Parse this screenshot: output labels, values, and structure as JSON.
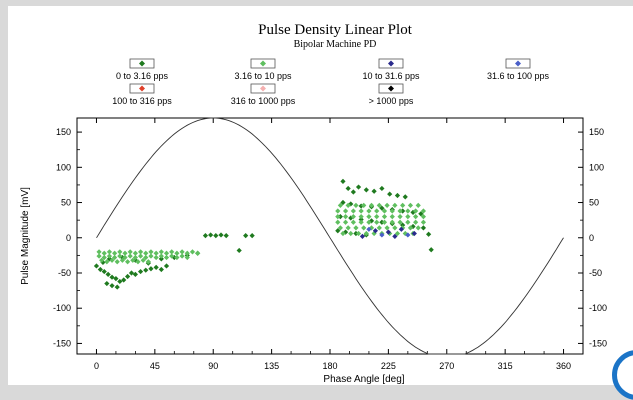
{
  "chart_data": {
    "type": "scatter",
    "title": "Pulse Density Linear Plot",
    "subtitle": "Bipolar Machine PD",
    "xlabel": "Phase Angle [deg]",
    "ylabel": "Pulse Magnitude [mV]",
    "xlim": [
      -15,
      375
    ],
    "ylim": [
      -165,
      170
    ],
    "xticks": [
      0,
      45,
      90,
      135,
      180,
      225,
      270,
      315,
      360
    ],
    "yticks": [
      150,
      100,
      50,
      0,
      -50,
      -100,
      -150
    ],
    "grid": false,
    "legend": [
      {
        "label": "0 to 3.16 pps",
        "color": "#1f7a1f"
      },
      {
        "label": "3.16 to 10 pps",
        "color": "#5fbf5f"
      },
      {
        "label": "10 to 31.6 pps",
        "color": "#2a2a8c"
      },
      {
        "label": "31.6 to 100 pps",
        "color": "#4a5fc8"
      },
      {
        "label": "100 to 316 pps",
        "color": "#e0402a"
      },
      {
        "label": "316 to 1000 pps",
        "color": "#f5b0b0"
      },
      {
        "label": "> 1000 pps",
        "color": "#000000"
      }
    ],
    "reference_curve": {
      "name": "",
      "amplitude": 170,
      "period_deg": 360
    },
    "series": [
      {
        "range": "0 to 3.16 pps",
        "color": "#1f7a1f",
        "points": [
          [
            0,
            -40
          ],
          [
            3,
            -45
          ],
          [
            6,
            -48
          ],
          [
            9,
            -52
          ],
          [
            12,
            -56
          ],
          [
            15,
            -58
          ],
          [
            18,
            -62
          ],
          [
            21,
            -60
          ],
          [
            24,
            -55
          ],
          [
            27,
            -50
          ],
          [
            8,
            -65
          ],
          [
            12,
            -68
          ],
          [
            16,
            -70
          ],
          [
            30,
            -52
          ],
          [
            34,
            -48
          ],
          [
            38,
            -46
          ],
          [
            42,
            -44
          ],
          [
            46,
            -42
          ],
          [
            50,
            -45
          ],
          [
            54,
            -40
          ],
          [
            5,
            -35
          ],
          [
            10,
            -30
          ],
          [
            20,
            -28
          ],
          [
            30,
            -32
          ],
          [
            40,
            -36
          ],
          [
            50,
            -30
          ],
          [
            60,
            -28
          ],
          [
            70,
            -25
          ],
          [
            78,
            -22
          ],
          [
            84,
            3
          ],
          [
            88,
            4
          ],
          [
            92,
            3
          ],
          [
            96,
            4
          ],
          [
            100,
            3
          ],
          [
            110,
            -18
          ],
          [
            115,
            3
          ],
          [
            120,
            3
          ],
          [
            190,
            80
          ],
          [
            194,
            70
          ],
          [
            198,
            65
          ],
          [
            202,
            72
          ],
          [
            208,
            68
          ],
          [
            214,
            66
          ],
          [
            220,
            70
          ],
          [
            226,
            62
          ],
          [
            232,
            60
          ],
          [
            238,
            58
          ],
          [
            190,
            50
          ],
          [
            196,
            48
          ],
          [
            204,
            45
          ],
          [
            212,
            44
          ],
          [
            220,
            42
          ],
          [
            228,
            40
          ],
          [
            236,
            38
          ],
          [
            244,
            36
          ],
          [
            250,
            34
          ],
          [
            188,
            30
          ],
          [
            196,
            28
          ],
          [
            204,
            26
          ],
          [
            212,
            24
          ],
          [
            220,
            22
          ],
          [
            228,
            20
          ],
          [
            236,
            18
          ],
          [
            244,
            16
          ],
          [
            252,
            14
          ],
          [
            256,
            5
          ],
          [
            186,
            10
          ],
          [
            192,
            8
          ],
          [
            200,
            6
          ],
          [
            208,
            4
          ],
          [
            258,
            -17
          ]
        ]
      },
      {
        "range": "3.16 to 10 pps",
        "color": "#5fbf5f",
        "points": [
          [
            2,
            -20
          ],
          [
            6,
            -22
          ],
          [
            10,
            -20
          ],
          [
            14,
            -22
          ],
          [
            18,
            -20
          ],
          [
            22,
            -22
          ],
          [
            26,
            -20
          ],
          [
            30,
            -22
          ],
          [
            34,
            -20
          ],
          [
            38,
            -22
          ],
          [
            42,
            -20
          ],
          [
            46,
            -22
          ],
          [
            50,
            -20
          ],
          [
            54,
            -22
          ],
          [
            58,
            -20
          ],
          [
            62,
            -22
          ],
          [
            66,
            -20
          ],
          [
            70,
            -22
          ],
          [
            74,
            -20
          ],
          [
            78,
            -22
          ],
          [
            2,
            -26
          ],
          [
            6,
            -28
          ],
          [
            10,
            -26
          ],
          [
            14,
            -28
          ],
          [
            18,
            -26
          ],
          [
            22,
            -28
          ],
          [
            26,
            -26
          ],
          [
            30,
            -28
          ],
          [
            34,
            -26
          ],
          [
            38,
            -28
          ],
          [
            42,
            -26
          ],
          [
            46,
            -28
          ],
          [
            50,
            -26
          ],
          [
            54,
            -28
          ],
          [
            58,
            -26
          ],
          [
            62,
            -28
          ],
          [
            66,
            -26
          ],
          [
            70,
            -28
          ],
          [
            4,
            -32
          ],
          [
            8,
            -34
          ],
          [
            12,
            -32
          ],
          [
            16,
            -34
          ],
          [
            20,
            -32
          ],
          [
            24,
            -34
          ],
          [
            28,
            -32
          ],
          [
            32,
            -34
          ],
          [
            36,
            -32
          ],
          [
            40,
            -34
          ],
          [
            188,
            46
          ],
          [
            194,
            46
          ],
          [
            200,
            46
          ],
          [
            206,
            46
          ],
          [
            212,
            46
          ],
          [
            218,
            46
          ],
          [
            224,
            46
          ],
          [
            230,
            46
          ],
          [
            236,
            46
          ],
          [
            242,
            46
          ],
          [
            248,
            46
          ],
          [
            186,
            38
          ],
          [
            192,
            38
          ],
          [
            198,
            38
          ],
          [
            204,
            38
          ],
          [
            210,
            38
          ],
          [
            216,
            38
          ],
          [
            222,
            38
          ],
          [
            228,
            38
          ],
          [
            234,
            38
          ],
          [
            240,
            38
          ],
          [
            246,
            38
          ],
          [
            252,
            38
          ],
          [
            186,
            30
          ],
          [
            192,
            30
          ],
          [
            198,
            30
          ],
          [
            204,
            30
          ],
          [
            210,
            30
          ],
          [
            216,
            30
          ],
          [
            222,
            30
          ],
          [
            228,
            30
          ],
          [
            234,
            30
          ],
          [
            240,
            30
          ],
          [
            246,
            30
          ],
          [
            252,
            30
          ],
          [
            186,
            22
          ],
          [
            192,
            22
          ],
          [
            198,
            22
          ],
          [
            204,
            22
          ],
          [
            210,
            22
          ],
          [
            216,
            22
          ],
          [
            222,
            22
          ],
          [
            228,
            22
          ],
          [
            234,
            22
          ],
          [
            240,
            22
          ],
          [
            246,
            22
          ],
          [
            252,
            22
          ],
          [
            188,
            14
          ],
          [
            194,
            14
          ],
          [
            200,
            14
          ],
          [
            206,
            14
          ],
          [
            212,
            14
          ],
          [
            218,
            14
          ],
          [
            224,
            14
          ],
          [
            230,
            14
          ],
          [
            236,
            14
          ],
          [
            242,
            14
          ],
          [
            248,
            14
          ],
          [
            190,
            6
          ],
          [
            196,
            6
          ],
          [
            202,
            6
          ],
          [
            208,
            6
          ],
          [
            214,
            6
          ],
          [
            220,
            6
          ],
          [
            226,
            6
          ],
          [
            232,
            6
          ],
          [
            238,
            6
          ],
          [
            244,
            6
          ]
        ]
      },
      {
        "range": "10 to 31.6 pps",
        "color": "#2a2a8c",
        "points": [
          [
            215,
            10
          ],
          [
            225,
            8
          ],
          [
            235,
            12
          ],
          [
            245,
            6
          ],
          [
            205,
            2
          ],
          [
            230,
            2
          ]
        ]
      },
      {
        "range": "31.6 to 100 pps",
        "color": "#4a5fc8",
        "points": [
          [
            220,
            4
          ],
          [
            240,
            4
          ],
          [
            210,
            12
          ]
        ]
      }
    ]
  }
}
